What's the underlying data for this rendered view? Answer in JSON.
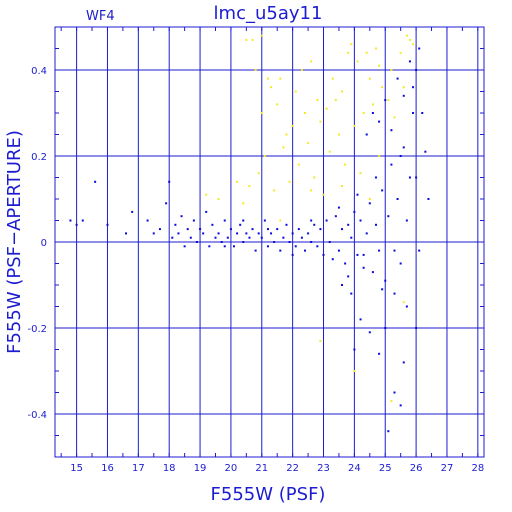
{
  "chart_data": {
    "type": "scatter",
    "title": "lmc_u5ay11",
    "panel_label": "WF4",
    "xlabel": "F555W (PSF)",
    "ylabel": "F555W (PSF−APERTURE)",
    "xlim": [
      14.3,
      28.2
    ],
    "ylim": [
      -0.5,
      0.5
    ],
    "xticks": [
      15,
      16,
      17,
      18,
      19,
      20,
      21,
      22,
      23,
      24,
      25,
      26,
      27,
      28
    ],
    "yticks": [
      -0.4,
      -0.2,
      0,
      0.2,
      0.4
    ],
    "ytick_labels": [
      "-0.4",
      "-0.2",
      "0",
      "0.2",
      "0.4"
    ],
    "grid": true,
    "colors": {
      "axes": "#1c1cd0",
      "main": "#0a0ae0",
      "rejected": "#f2ea22",
      "background": "#ffffff"
    },
    "series": [
      {
        "color": "yellow",
        "points": [
          [
            20.5,
            0.47
          ],
          [
            20.7,
            0.47
          ],
          [
            20.8,
            0.4
          ],
          [
            21.0,
            0.48
          ],
          [
            21.2,
            0.38
          ],
          [
            21.3,
            0.36
          ],
          [
            21.6,
            0.38
          ],
          [
            22.3,
            0.4
          ],
          [
            22.6,
            0.42
          ],
          [
            23.1,
            0.31
          ],
          [
            23.4,
            0.33
          ],
          [
            23.6,
            0.35
          ],
          [
            23.8,
            0.44
          ],
          [
            24.1,
            0.42
          ],
          [
            24.3,
            0.3
          ],
          [
            24.5,
            0.38
          ],
          [
            24.7,
            0.45
          ],
          [
            24.9,
            0.36
          ],
          [
            25.2,
            0.4
          ],
          [
            25.5,
            0.44
          ],
          [
            25.7,
            0.48
          ],
          [
            25.9,
            0.46
          ],
          [
            22.1,
            0.35
          ],
          [
            22.4,
            0.3
          ],
          [
            22.8,
            0.33
          ],
          [
            23.3,
            0.38
          ],
          [
            23.9,
            0.46
          ],
          [
            24.4,
            0.44
          ],
          [
            24.8,
            0.41
          ],
          [
            25.4,
            0.38
          ],
          [
            25.8,
            0.47
          ],
          [
            21.0,
            0.3
          ],
          [
            21.5,
            0.32
          ],
          [
            22.0,
            0.27
          ],
          [
            21.8,
            0.25
          ],
          [
            22.9,
            0.28
          ],
          [
            23.5,
            0.25
          ],
          [
            24.0,
            0.27
          ],
          [
            24.6,
            0.32
          ],
          [
            25.1,
            0.33
          ],
          [
            25.3,
            0.29
          ],
          [
            25.6,
            0.36
          ],
          [
            21.1,
            0.2
          ],
          [
            21.7,
            0.22
          ],
          [
            22.2,
            0.18
          ],
          [
            22.5,
            0.23
          ],
          [
            22.7,
            0.15
          ],
          [
            23.2,
            0.21
          ],
          [
            23.7,
            0.18
          ],
          [
            24.2,
            0.16
          ],
          [
            24.8,
            0.2
          ],
          [
            20.2,
            0.14
          ],
          [
            20.6,
            0.13
          ],
          [
            20.9,
            0.16
          ],
          [
            21.4,
            0.12
          ],
          [
            21.9,
            0.14
          ],
          [
            22.6,
            0.12
          ],
          [
            23.0,
            0.11
          ],
          [
            23.6,
            0.13
          ],
          [
            24.5,
            0.1
          ],
          [
            19.2,
            0.11
          ],
          [
            19.6,
            0.1
          ],
          [
            20.4,
            0.09
          ],
          [
            21.6,
            0.05
          ],
          [
            22.9,
            -0.23
          ],
          [
            24.0,
            -0.3
          ],
          [
            25.2,
            -0.37
          ],
          [
            25.6,
            -0.14
          ]
        ]
      },
      {
        "color": "blue",
        "points": [
          [
            14.8,
            0.05
          ],
          [
            15.0,
            0.04
          ],
          [
            15.2,
            0.05
          ],
          [
            15.6,
            0.14
          ],
          [
            16.0,
            0.04
          ],
          [
            16.6,
            0.02
          ],
          [
            16.8,
            0.07
          ],
          [
            17.3,
            0.05
          ],
          [
            17.5,
            0.02
          ],
          [
            17.7,
            0.03
          ],
          [
            17.9,
            0.09
          ],
          [
            18.0,
            0.14
          ],
          [
            18.1,
            0.01
          ],
          [
            18.2,
            0.04
          ],
          [
            18.3,
            0.02
          ],
          [
            18.4,
            0.06
          ],
          [
            18.5,
            -0.01
          ],
          [
            18.6,
            0.03
          ],
          [
            18.7,
            0.01
          ],
          [
            18.8,
            0.05
          ],
          [
            18.9,
            0.0
          ],
          [
            19.0,
            0.03
          ],
          [
            19.1,
            0.02
          ],
          [
            19.2,
            0.07
          ],
          [
            19.3,
            -0.01
          ],
          [
            19.4,
            0.04
          ],
          [
            19.5,
            0.01
          ],
          [
            19.6,
            0.02
          ],
          [
            19.7,
            0.0
          ],
          [
            19.8,
            0.05
          ],
          [
            19.9,
            0.01
          ],
          [
            20.0,
            0.03
          ],
          [
            20.1,
            -0.01
          ],
          [
            20.2,
            0.02
          ],
          [
            20.3,
            0.04
          ],
          [
            20.4,
            0.0
          ],
          [
            20.5,
            0.02
          ],
          [
            20.6,
            0.01
          ],
          [
            20.7,
            0.03
          ],
          [
            20.8,
            -0.02
          ],
          [
            20.9,
            0.02
          ],
          [
            21.0,
            0.01
          ],
          [
            21.1,
            0.05
          ],
          [
            21.2,
            -0.01
          ],
          [
            21.3,
            0.02
          ],
          [
            21.4,
            0.0
          ],
          [
            21.5,
            0.03
          ],
          [
            21.6,
            -0.02
          ],
          [
            21.7,
            0.01
          ],
          [
            21.8,
            0.04
          ],
          [
            21.9,
            0.0
          ],
          [
            22.0,
            0.02
          ],
          [
            22.1,
            -0.01
          ],
          [
            22.2,
            0.03
          ],
          [
            22.3,
            0.01
          ],
          [
            22.4,
            -0.02
          ],
          [
            22.5,
            0.02
          ],
          [
            22.6,
            0.0
          ],
          [
            22.7,
            0.04
          ],
          [
            22.8,
            -0.01
          ],
          [
            22.9,
            0.03
          ],
          [
            23.0,
            -0.03
          ],
          [
            23.1,
            0.05
          ],
          [
            23.2,
            0.0
          ],
          [
            23.3,
            -0.04
          ],
          [
            23.4,
            0.06
          ],
          [
            23.5,
            -0.02
          ],
          [
            23.6,
            0.03
          ],
          [
            23.7,
            -0.05
          ],
          [
            23.8,
            0.04
          ],
          [
            23.9,
            0.01
          ],
          [
            24.0,
            0.07
          ],
          [
            24.1,
            -0.03
          ],
          [
            24.2,
            0.05
          ],
          [
            24.3,
            -0.06
          ],
          [
            24.4,
            0.02
          ],
          [
            24.5,
            0.09
          ],
          [
            24.6,
            -0.07
          ],
          [
            24.7,
            0.04
          ],
          [
            24.8,
            -0.02
          ],
          [
            24.9,
            0.12
          ],
          [
            25.0,
            -0.09
          ],
          [
            25.1,
            0.06
          ],
          [
            25.2,
            0.18
          ],
          [
            25.3,
            -0.12
          ],
          [
            25.4,
            0.1
          ],
          [
            25.5,
            -0.05
          ],
          [
            25.6,
            0.22
          ],
          [
            25.7,
            -0.15
          ],
          [
            25.8,
            0.15
          ],
          [
            25.9,
            0.3
          ],
          [
            26.0,
            -0.2
          ],
          [
            25.8,
            0.42
          ],
          [
            26.0,
            0.4
          ],
          [
            26.1,
            0.45
          ],
          [
            25.9,
            0.36
          ],
          [
            26.2,
            0.3
          ],
          [
            26.3,
            0.21
          ],
          [
            26.4,
            0.1
          ],
          [
            26.1,
            -0.02
          ],
          [
            25.3,
            -0.35
          ],
          [
            25.5,
            -0.38
          ],
          [
            25.1,
            -0.44
          ],
          [
            24.8,
            -0.26
          ],
          [
            24.5,
            -0.21
          ],
          [
            24.2,
            -0.18
          ],
          [
            23.9,
            -0.12
          ],
          [
            23.6,
            -0.1
          ],
          [
            24.0,
            -0.25
          ],
          [
            25.0,
            -0.2
          ],
          [
            25.6,
            -0.28
          ],
          [
            24.4,
            0.25
          ],
          [
            24.6,
            0.3
          ],
          [
            24.8,
            0.28
          ],
          [
            25.0,
            0.33
          ],
          [
            25.2,
            0.26
          ],
          [
            25.4,
            0.38
          ],
          [
            25.6,
            0.34
          ],
          [
            24.3,
            -0.03
          ],
          [
            23.5,
            0.08
          ],
          [
            22.6,
            0.05
          ],
          [
            22.0,
            -0.03
          ],
          [
            21.2,
            0.03
          ],
          [
            20.4,
            0.05
          ],
          [
            19.8,
            -0.01
          ],
          [
            23.8,
            -0.08
          ],
          [
            24.7,
            0.15
          ],
          [
            25.5,
            0.2
          ],
          [
            26.0,
            0.15
          ],
          [
            25.7,
            0.05
          ],
          [
            25.3,
            -0.02
          ],
          [
            24.9,
            -0.11
          ],
          [
            24.1,
            0.11
          ]
        ]
      }
    ]
  }
}
